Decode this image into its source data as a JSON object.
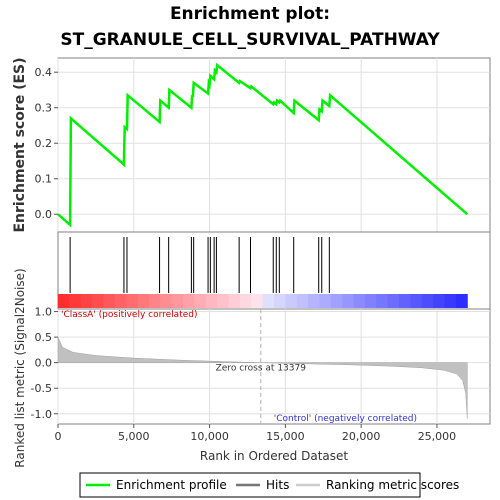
{
  "title_line1": "Enrichment plot:",
  "title_line2": "ST_GRANULE_CELL_SURVIVAL_PATHWAY",
  "chart_data": {
    "type": "line",
    "xlabel": "Rank in Ordered Dataset",
    "xlim": [
      0,
      28500
    ],
    "x_ticks": [
      0,
      5000,
      10000,
      15000,
      20000,
      25000
    ],
    "x_tick_labels": [
      "0",
      "5,000",
      "10,000",
      "15,000",
      "20,000",
      "25,000"
    ],
    "es_panel": {
      "ylabel": "Enrichment score (ES)",
      "ylim": [
        -0.05,
        0.44
      ],
      "y_ticks": [
        0.0,
        0.1,
        0.2,
        0.3,
        0.4
      ],
      "y_tick_labels": [
        "0.0",
        "0.1",
        "0.2",
        "0.3",
        "0.4"
      ],
      "series": [
        {
          "name": "Enrichment profile",
          "color": "#00ee00",
          "x": [
            0,
            800,
            850,
            4350,
            4400,
            4550,
            4600,
            6700,
            6750,
            7300,
            7350,
            8800,
            8850,
            8900,
            8950,
            9900,
            9950,
            10000,
            10050,
            10300,
            10350,
            10450,
            10500,
            11950,
            12000,
            12700,
            12750,
            14200,
            14250,
            14400,
            14450,
            14600,
            14650,
            15550,
            15600,
            17200,
            17250,
            17400,
            17450,
            17900,
            17950,
            27000
          ],
          "y": [
            0.0,
            -0.03,
            0.27,
            0.14,
            0.245,
            0.24,
            0.335,
            0.26,
            0.32,
            0.3,
            0.35,
            0.3,
            0.335,
            0.33,
            0.37,
            0.34,
            0.37,
            0.365,
            0.39,
            0.38,
            0.405,
            0.4,
            0.42,
            0.37,
            0.375,
            0.355,
            0.36,
            0.31,
            0.315,
            0.31,
            0.32,
            0.315,
            0.32,
            0.285,
            0.32,
            0.265,
            0.295,
            0.29,
            0.32,
            0.305,
            0.335,
            0.0
          ]
        }
      ]
    },
    "hits_panel": {
      "legend_name": "Hits",
      "hit_ranks": [
        800,
        4350,
        4550,
        6700,
        7300,
        8800,
        8950,
        9900,
        10050,
        10300,
        10450,
        11950,
        12700,
        14200,
        14400,
        14600,
        15550,
        17200,
        17400,
        17900
      ]
    },
    "metric_panel": {
      "legend_name": "Ranking metric scores",
      "ylabel": "Ranked list metric (Signal2Noise)",
      "ylim": [
        -1.2,
        1.05
      ],
      "y_ticks": [
        1.0,
        0.5,
        0.0,
        -0.5,
        -1.0
      ],
      "y_tick_labels": [
        "1.0",
        "0.5",
        "0.0",
        "-0.5",
        "-1.0"
      ],
      "profile_x": [
        0,
        300,
        1000,
        2500,
        5000,
        8000,
        11000,
        13379,
        16000,
        19000,
        22000,
        24000,
        25500,
        26300,
        26700,
        26900,
        27000
      ],
      "profile_y": [
        0.5,
        0.3,
        0.2,
        0.14,
        0.09,
        0.05,
        0.02,
        0.0,
        -0.02,
        -0.04,
        -0.07,
        -0.1,
        -0.15,
        -0.22,
        -0.35,
        -0.6,
        -1.1
      ],
      "zero_cross_label": "Zero cross at 13379",
      "zero_cross_rank": 13379,
      "pos_label": "'ClassA' (positively correlated)",
      "neg_label": "'Control' (negatively correlated)"
    }
  }
}
